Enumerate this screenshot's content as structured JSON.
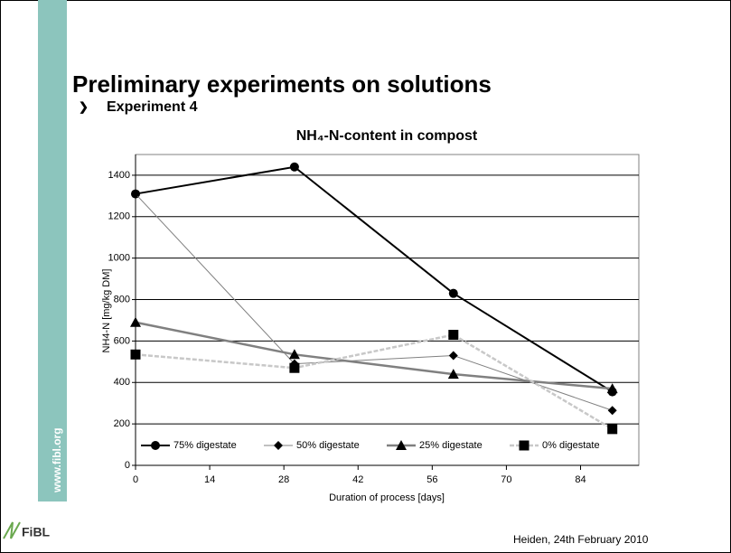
{
  "slide": {
    "title": "Preliminary experiments on solutions",
    "bullet": "Experiment 4",
    "side_text": "www.fibl.org",
    "logo": "FiBL",
    "footer": "Heiden, 24th February 2010"
  },
  "chart_data": {
    "type": "line",
    "title": "NH₄-N-content in compost",
    "x_label": "Duration of process [days]",
    "y_label": "NH4-N [mg/kg DM]",
    "x": [
      0,
      30,
      60,
      90
    ],
    "series": [
      {
        "name": "75% digestate",
        "color": "#000000",
        "marker": "circle",
        "values": [
          1310,
          1440,
          830,
          355
        ]
      },
      {
        "name": "50% digestate",
        "color": "#808080",
        "marker": "diamond",
        "values": [
          1310,
          490,
          530,
          265
        ]
      },
      {
        "name": "25% digestate",
        "color": "#808080",
        "marker": "triangle",
        "values": [
          690,
          535,
          440,
          370
        ]
      },
      {
        "name": "0% digestate",
        "color": "#c8c8c8",
        "marker": "square",
        "values": [
          535,
          470,
          630,
          175
        ]
      }
    ],
    "xlim": [
      0,
      95
    ],
    "xticks": [
      0,
      14,
      28,
      42,
      56,
      70,
      84
    ],
    "ylim": [
      0,
      1500
    ],
    "yticks": [
      0,
      200,
      400,
      600,
      800,
      1000,
      1200,
      1400
    ],
    "grid": true,
    "legend": "bottom"
  }
}
